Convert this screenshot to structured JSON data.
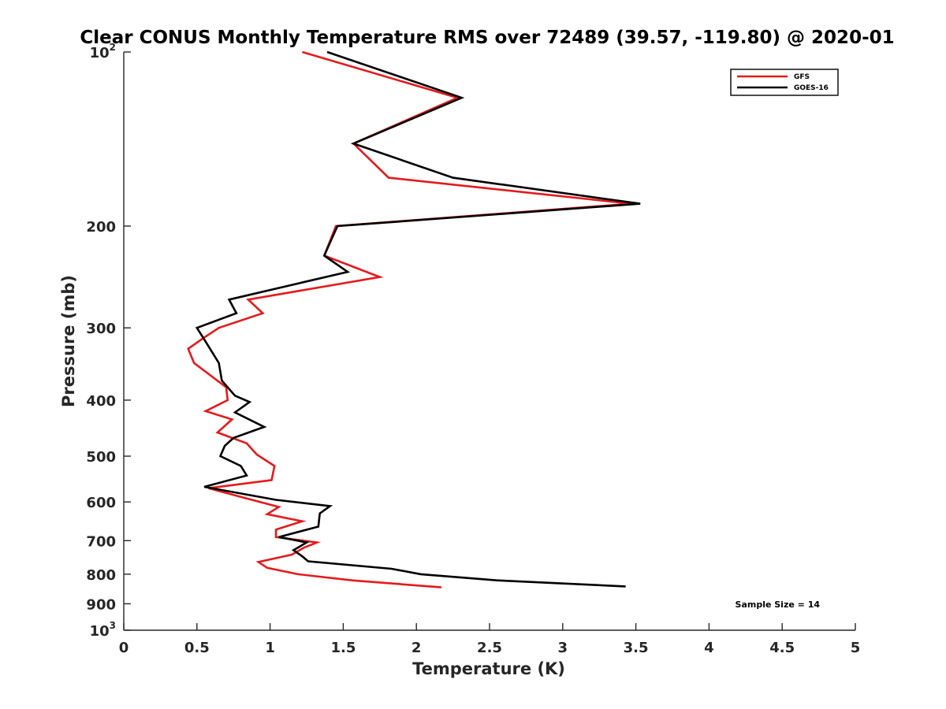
{
  "chart_data": {
    "type": "line",
    "title": "Clear CONUS Monthly Temperature RMS over 72489 (39.57, -119.80) @ 2020-01",
    "xlabel": "Temperature (K)",
    "ylabel": "Pressure (mb)",
    "xlim": [
      0,
      5
    ],
    "ylim": [
      100,
      1000
    ],
    "y_scale": "log",
    "y_reversed": true,
    "grid": false,
    "legend_position": "top-right",
    "x_ticks": [
      "0",
      "0.5",
      "1",
      "1.5",
      "2",
      "2.5",
      "3",
      "3.5",
      "4",
      "4.5",
      "5"
    ],
    "y_ticks": [
      {
        "value": 100,
        "base": "10",
        "exp": "2"
      },
      {
        "value": 200,
        "label": "200"
      },
      {
        "value": 300,
        "label": "300"
      },
      {
        "value": 400,
        "label": "400"
      },
      {
        "value": 500,
        "label": "500"
      },
      {
        "value": 600,
        "label": "600"
      },
      {
        "value": 700,
        "label": "700"
      },
      {
        "value": 800,
        "label": "800"
      },
      {
        "value": 900,
        "label": "900"
      },
      {
        "value": 1000,
        "base": "10",
        "exp": "3"
      }
    ],
    "annotation": "Sample Size = 14",
    "series": [
      {
        "name": "GFS",
        "color": "#e41a1c",
        "points": [
          [
            1.22,
            100
          ],
          [
            2.28,
            120
          ],
          [
            1.57,
            144
          ],
          [
            1.81,
            165
          ],
          [
            3.47,
            183
          ],
          [
            1.45,
            200
          ],
          [
            1.37,
            225
          ],
          [
            1.75,
            245
          ],
          [
            0.85,
            268
          ],
          [
            0.95,
            283
          ],
          [
            0.65,
            300
          ],
          [
            0.54,
            313
          ],
          [
            0.44,
            326
          ],
          [
            0.48,
            345
          ],
          [
            0.7,
            380
          ],
          [
            0.71,
            400
          ],
          [
            0.56,
            418
          ],
          [
            0.74,
            432
          ],
          [
            0.64,
            455
          ],
          [
            0.84,
            475
          ],
          [
            0.91,
            497
          ],
          [
            1.03,
            520
          ],
          [
            1.01,
            550
          ],
          [
            0.58,
            568
          ],
          [
            0.82,
            590
          ],
          [
            1.06,
            612
          ],
          [
            0.98,
            630
          ],
          [
            1.22,
            648
          ],
          [
            1.04,
            670
          ],
          [
            1.04,
            690
          ],
          [
            1.32,
            705
          ],
          [
            1.23,
            720
          ],
          [
            1.15,
            740
          ],
          [
            0.92,
            762
          ],
          [
            0.98,
            780
          ],
          [
            1.19,
            800
          ],
          [
            1.56,
            820
          ],
          [
            2.17,
            843
          ]
        ]
      },
      {
        "name": "GOES-16",
        "color": "#000000",
        "points": [
          [
            1.39,
            100
          ],
          [
            2.31,
            120
          ],
          [
            1.57,
            144
          ],
          [
            2.25,
            165
          ],
          [
            3.53,
            183
          ],
          [
            1.46,
            200
          ],
          [
            1.37,
            225
          ],
          [
            1.53,
            240
          ],
          [
            0.72,
            268
          ],
          [
            0.77,
            283
          ],
          [
            0.5,
            300
          ],
          [
            0.57,
            320
          ],
          [
            0.65,
            345
          ],
          [
            0.67,
            370
          ],
          [
            0.76,
            393
          ],
          [
            0.86,
            403
          ],
          [
            0.76,
            420
          ],
          [
            0.96,
            445
          ],
          [
            0.75,
            465
          ],
          [
            0.69,
            480
          ],
          [
            0.66,
            500
          ],
          [
            0.8,
            520
          ],
          [
            0.84,
            540
          ],
          [
            0.55,
            565
          ],
          [
            1.04,
            595
          ],
          [
            1.41,
            610
          ],
          [
            1.34,
            628
          ],
          [
            1.33,
            662
          ],
          [
            1.06,
            690
          ],
          [
            1.25,
            705
          ],
          [
            1.16,
            727
          ],
          [
            1.22,
            745
          ],
          [
            1.26,
            760
          ],
          [
            1.83,
            783
          ],
          [
            2.03,
            800
          ],
          [
            2.55,
            820
          ],
          [
            3.43,
            840
          ]
        ]
      }
    ]
  }
}
